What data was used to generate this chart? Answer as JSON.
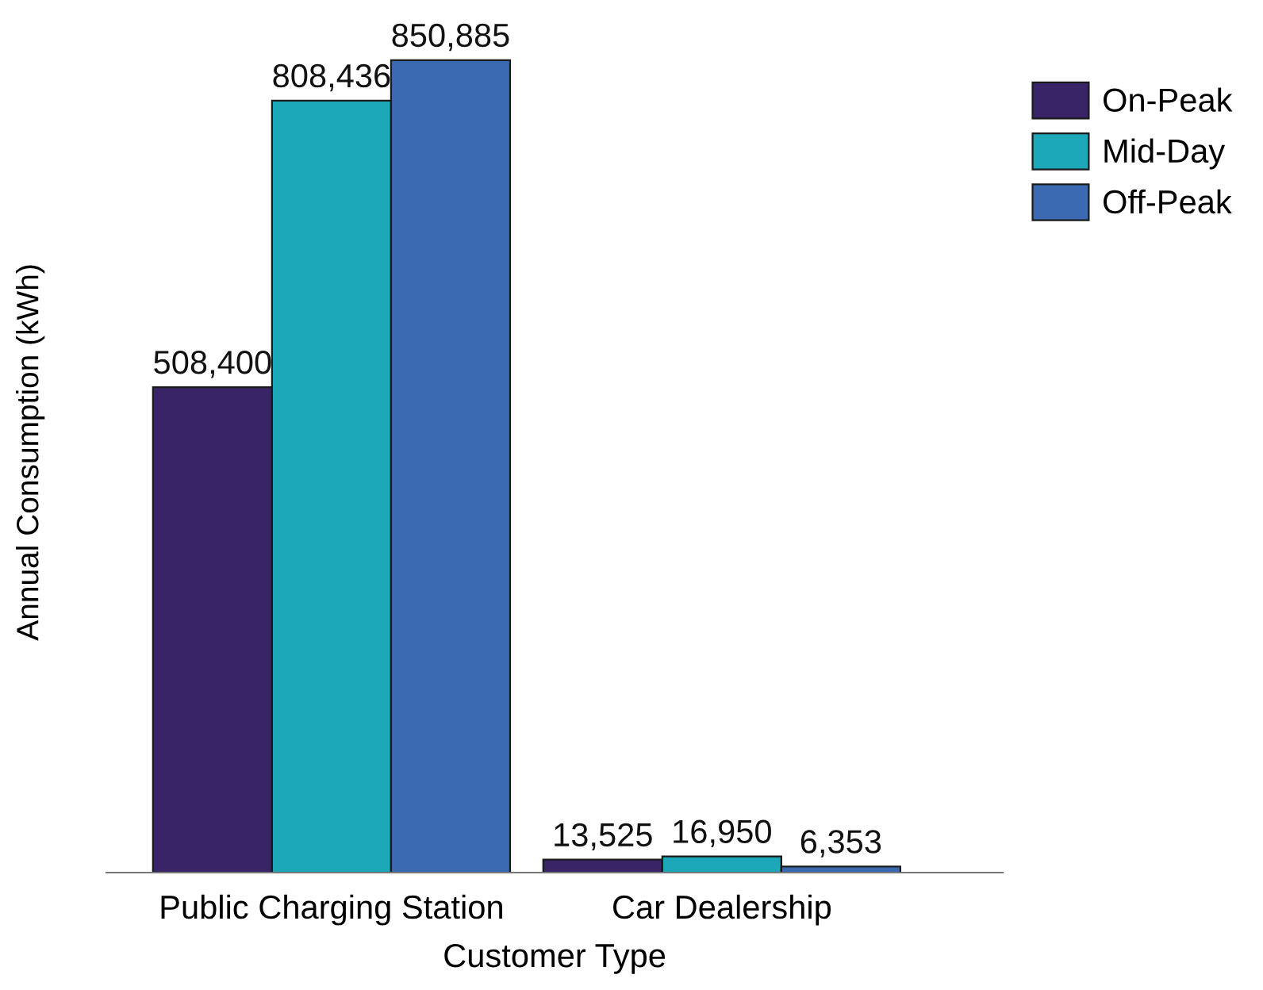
{
  "chart_data": {
    "type": "bar",
    "xlabel": "Customer Type",
    "ylabel": "Annual Consumption (kWh)",
    "categories": [
      "Public Charging Station",
      "Car Dealership"
    ],
    "series": [
      {
        "name": "On-Peak",
        "color": "#3a2468",
        "values": [
          508400,
          13525
        ],
        "value_labels": [
          "508,400",
          "13,525"
        ]
      },
      {
        "name": "Mid-Day",
        "color": "#1ca8b8",
        "values": [
          808436,
          16950
        ],
        "value_labels": [
          "808,436",
          "16,950"
        ]
      },
      {
        "name": "Off-Peak",
        "color": "#3b6ab3",
        "values": [
          850885,
          6353
        ],
        "value_labels": [
          "850,885",
          "6,353"
        ]
      }
    ],
    "legend": "top right",
    "tick_labels": "x",
    "grid": false
  }
}
